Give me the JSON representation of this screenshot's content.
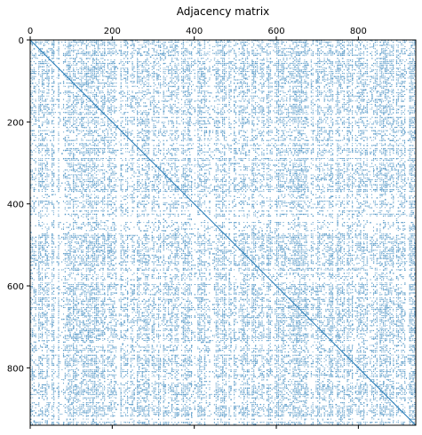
{
  "chart_data": {
    "type": "heatmap",
    "subtype": "sparsity-pattern",
    "title": "Adjacency matrix",
    "xlabel": "",
    "ylabel": "",
    "matrix_size": 940,
    "x_axis_position": "top",
    "xlim": [
      0,
      940
    ],
    "ylim": [
      940,
      0
    ],
    "x_ticks": [
      0,
      200,
      400,
      600,
      800
    ],
    "y_ticks": [
      0,
      200,
      400,
      600,
      800
    ],
    "x_tick_labels": [
      "0",
      "200",
      "400",
      "600",
      "800"
    ],
    "y_tick_labels": [
      "0",
      "200",
      "400",
      "600",
      "800"
    ],
    "nonzero_color": "#1f77b4",
    "background_color": "#ffffff",
    "grid": false,
    "diagonal_present": true
  }
}
